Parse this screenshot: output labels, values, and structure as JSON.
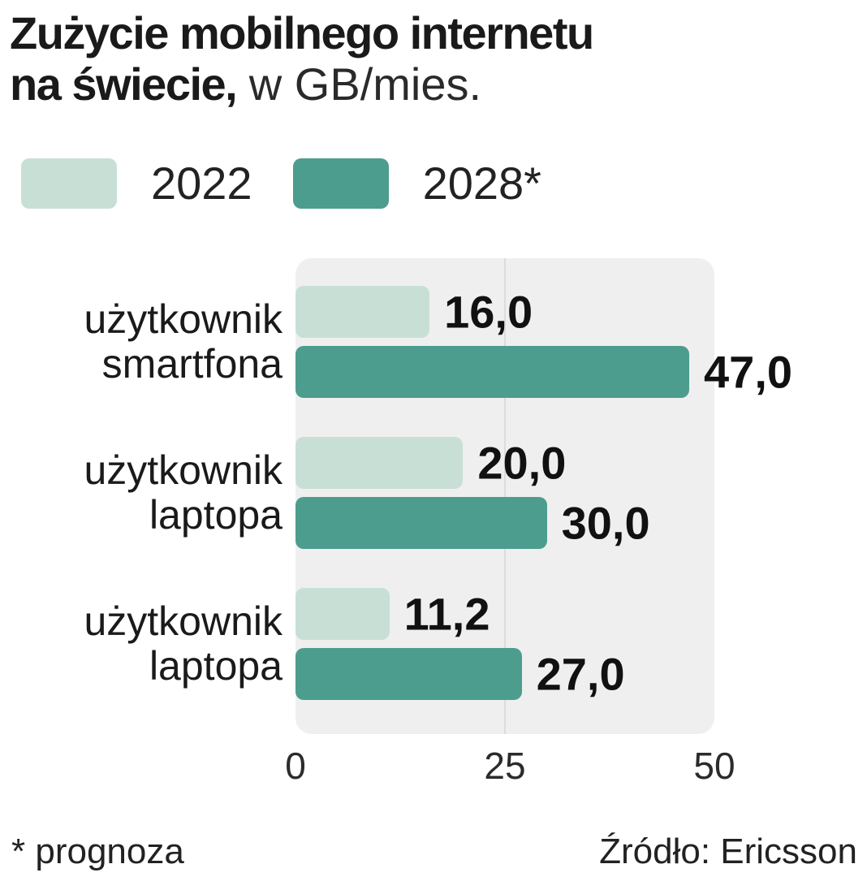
{
  "title": {
    "bold_line1": "Zużycie mobilnego internetu",
    "bold_line2": "na świecie,",
    "normal_suffix": " w GB/mies."
  },
  "legend": [
    {
      "label": "2022",
      "color": "#c8dfd6"
    },
    {
      "label": "2028*",
      "color": "#4d9d8e"
    }
  ],
  "chart_data": {
    "type": "bar",
    "orientation": "horizontal",
    "title": "Zużycie mobilnego internetu na świecie, w GB/mies.",
    "categories": [
      [
        "użytkownik",
        "smartfona"
      ],
      [
        "użytkownik",
        "laptopa"
      ],
      [
        "użytkownik",
        "laptopa"
      ]
    ],
    "series": [
      {
        "name": "2022",
        "color": "#c8dfd6",
        "values": [
          16.0,
          20.0,
          11.2
        ],
        "labels": [
          "16,0",
          "20,0",
          "11,2"
        ]
      },
      {
        "name": "2028*",
        "color": "#4d9d8e",
        "values": [
          47.0,
          30.0,
          27.0
        ],
        "labels": [
          "47,0",
          "30,0",
          "27,0"
        ]
      }
    ],
    "xlim": [
      0,
      50
    ],
    "xticks": [
      "0",
      "25",
      "50"
    ],
    "grid": "single vertical gridline at 25",
    "legend_position": "top",
    "plot_background": "#efeff0"
  },
  "footer": {
    "note": "* prognoza",
    "source": "Źródło: Ericsson"
  }
}
